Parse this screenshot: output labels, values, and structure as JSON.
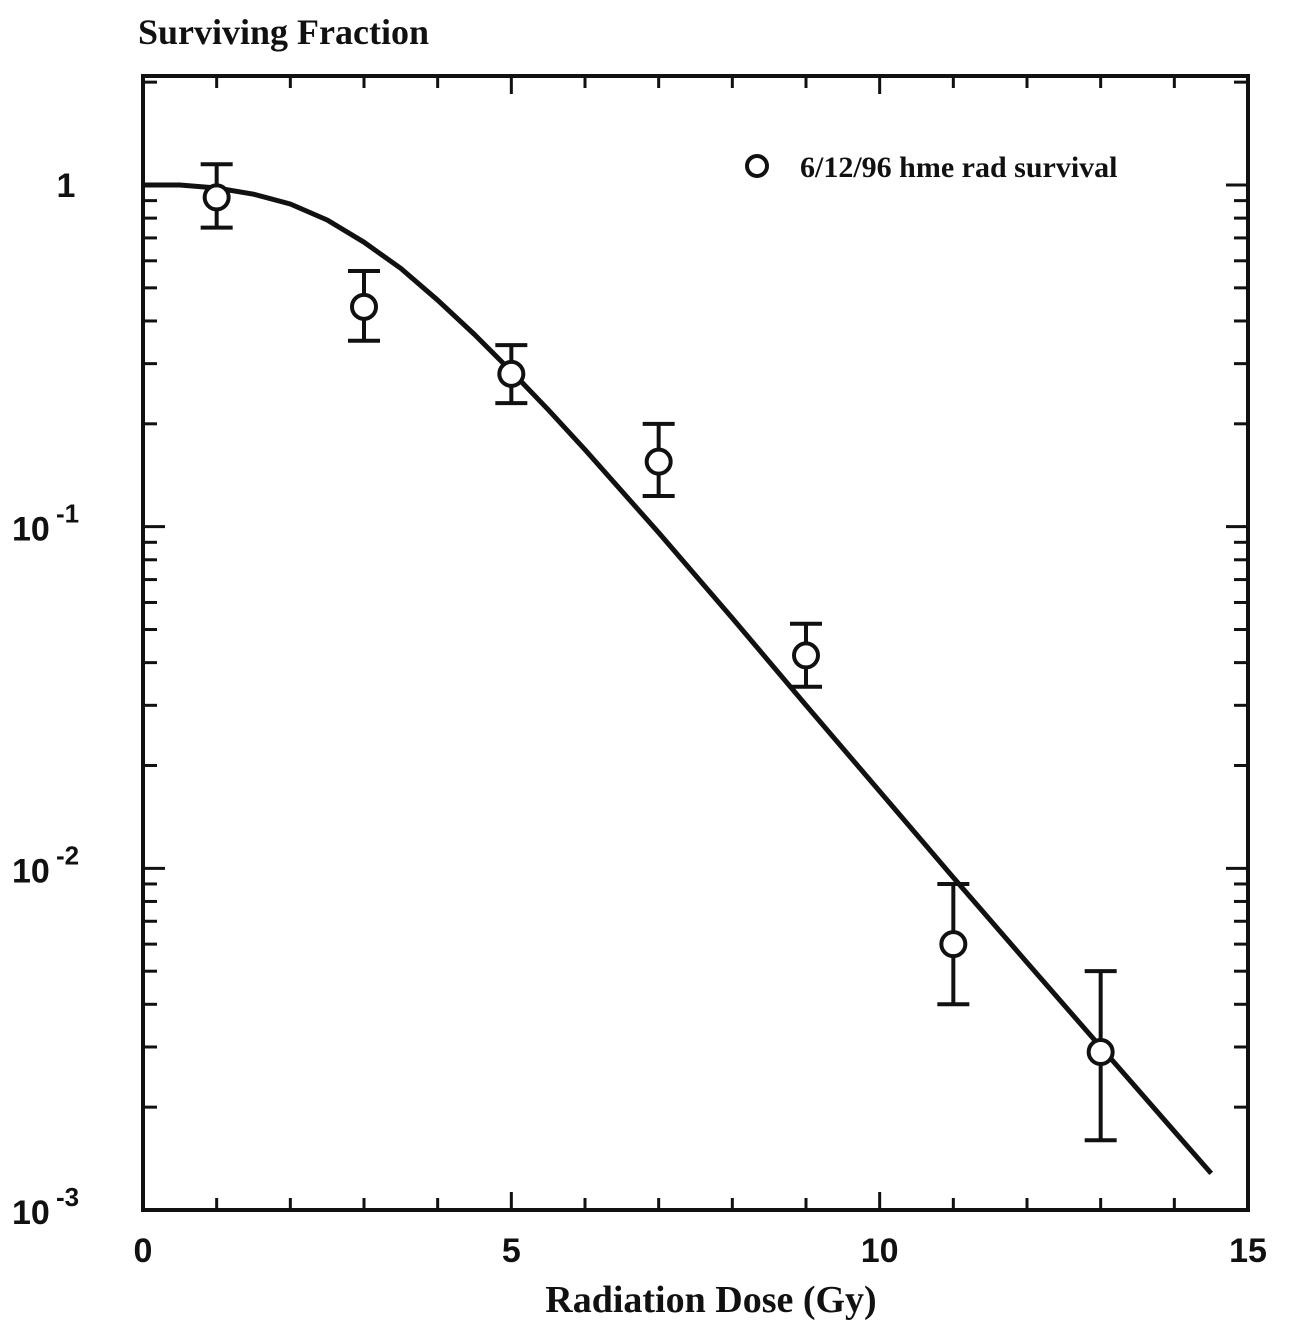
{
  "chart_data": {
    "type": "scatter",
    "title": "Surviving Fraction",
    "xlabel": "Radiation Dose (Gy)",
    "ylabel": "",
    "xlim": [
      0,
      15
    ],
    "ylim": [
      0.001,
      2
    ],
    "yscale": "log",
    "grid": false,
    "legend_position": "top-right",
    "x_ticks": [
      {
        "value": 0,
        "label": "0"
      },
      {
        "value": 5,
        "label": "5"
      },
      {
        "value": 10,
        "label": "10"
      },
      {
        "value": 15,
        "label": "15"
      }
    ],
    "y_ticks": [
      {
        "value": 1,
        "base": "1",
        "exp": ""
      },
      {
        "value": 0.1,
        "base": "10",
        "exp": "-1"
      },
      {
        "value": 0.01,
        "base": "10",
        "exp": "-2"
      },
      {
        "value": 0.001,
        "base": "10",
        "exp": "-3"
      }
    ],
    "series": [
      {
        "name": "6/12/96 hme rad survival",
        "marker": "open-circle",
        "x": [
          1,
          3,
          5,
          7,
          9,
          11,
          13
        ],
        "y": [
          0.92,
          0.44,
          0.28,
          0.155,
          0.042,
          0.006,
          0.0029
        ],
        "y_err_low": [
          0.75,
          0.35,
          0.23,
          0.123,
          0.034,
          0.004,
          0.0016
        ],
        "y_err_high": [
          1.15,
          0.56,
          0.34,
          0.2,
          0.052,
          0.009,
          0.005
        ]
      }
    ],
    "fit_curve": {
      "x": [
        0,
        0.5,
        1,
        1.5,
        2,
        2.5,
        3,
        3.5,
        4,
        4.5,
        5,
        5.5,
        6,
        7,
        8,
        9,
        10,
        11,
        12,
        13,
        14,
        14.5
      ],
      "y": [
        1.0,
        1.0,
        0.98,
        0.94,
        0.88,
        0.79,
        0.68,
        0.57,
        0.46,
        0.365,
        0.285,
        0.22,
        0.168,
        0.096,
        0.054,
        0.03,
        0.0168,
        0.0094,
        0.0053,
        0.003,
        0.0017,
        0.00128
      ]
    },
    "colors": {
      "ink": "#111111",
      "background": "#ffffff"
    }
  }
}
